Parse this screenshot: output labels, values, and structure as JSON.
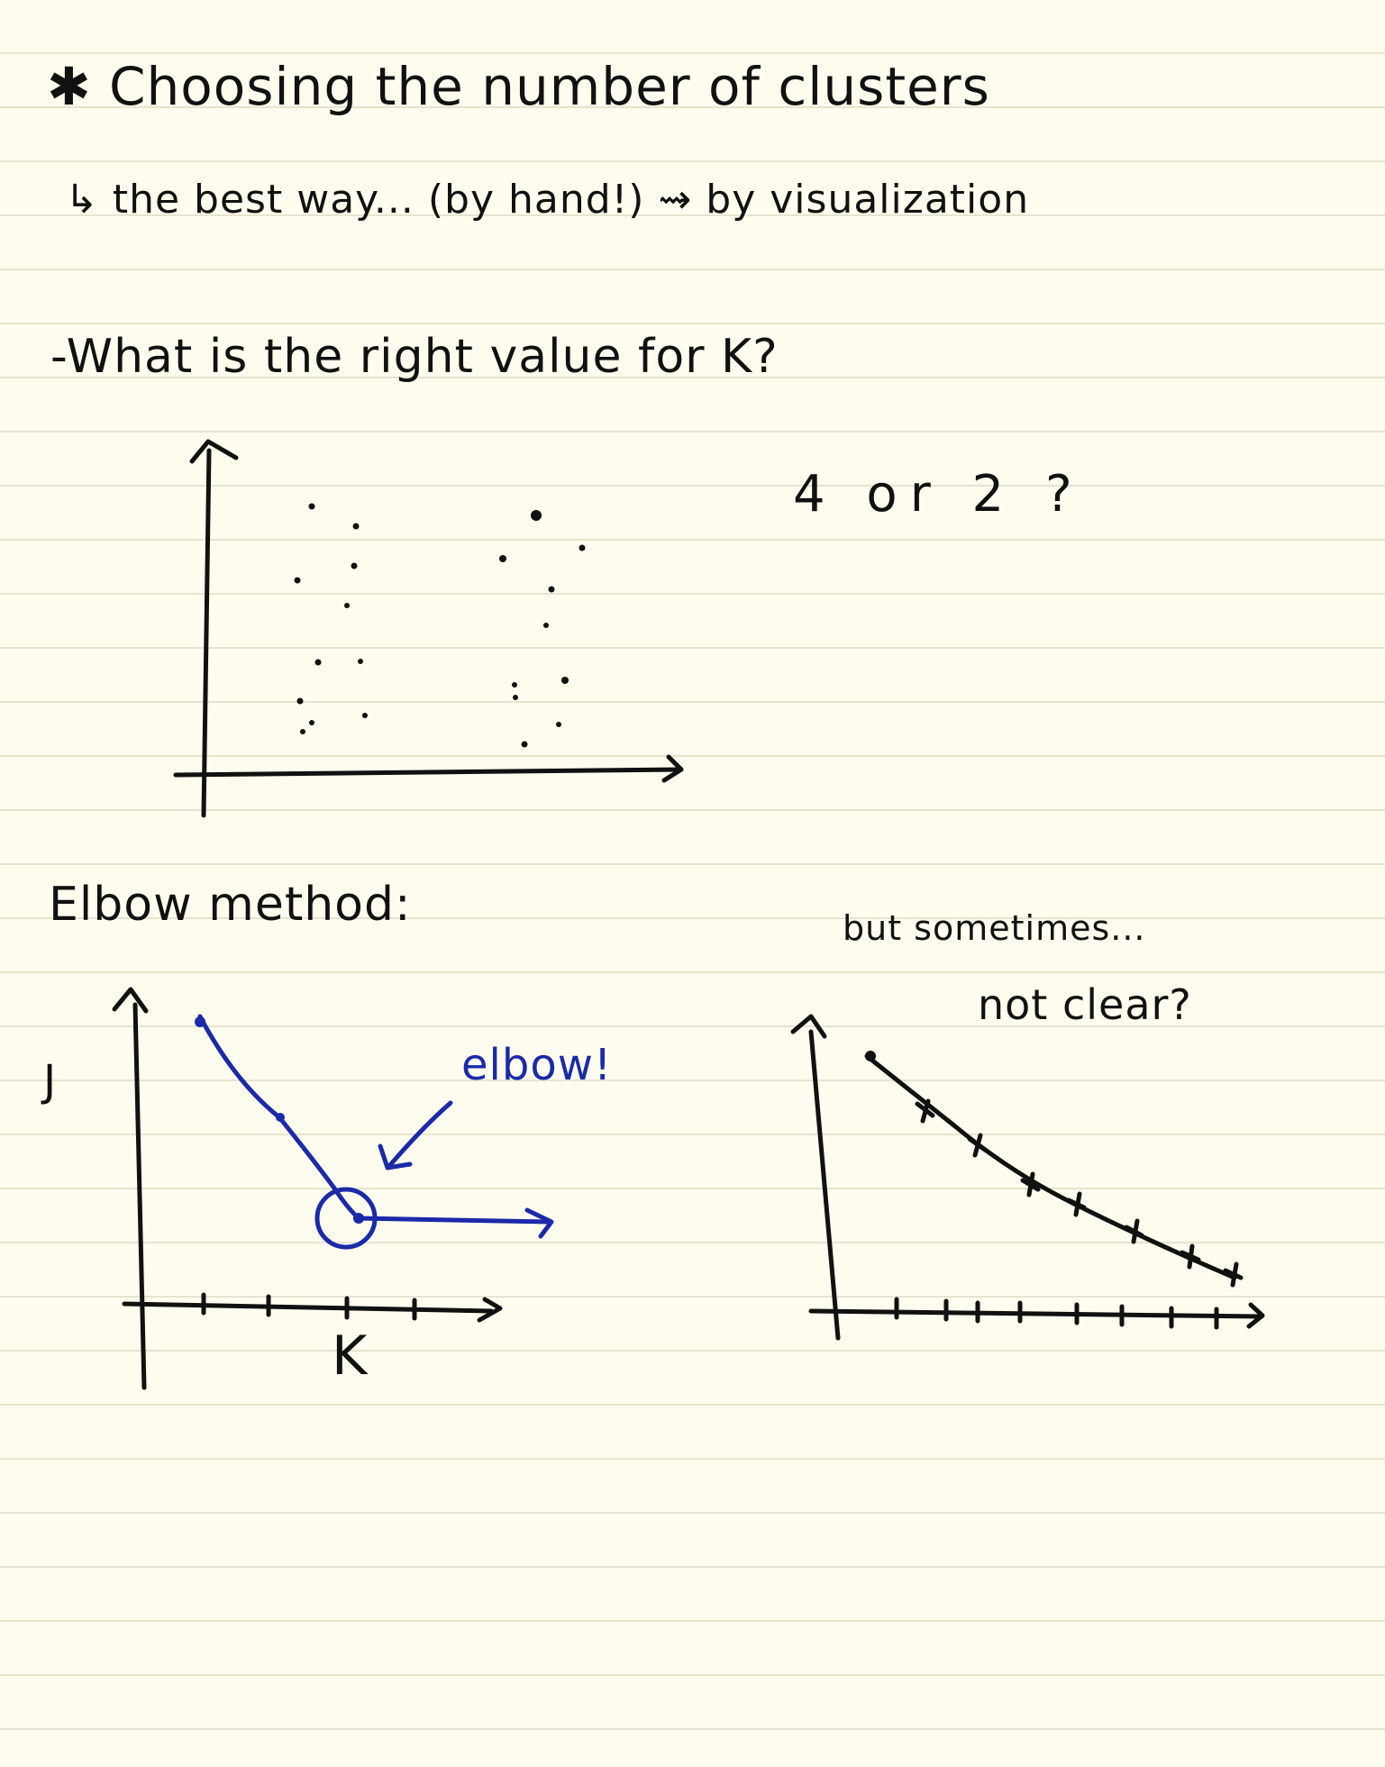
{
  "notes": {
    "heading": "✱ Choosing the number of clusters",
    "subheading": "↳ the best way... (by hand!) ⇝ by visualization",
    "question": "-What is the right value for K?",
    "options": "4  or  2 ?",
    "elbow_method": "Elbow method:",
    "but_sometimes": "but sometimes...",
    "not_clear": "not clear?",
    "y_label": "J",
    "x_label": "K",
    "elbow_label": "elbow!"
  },
  "colors": {
    "paper": "#fdfcee",
    "rule": "#e6e3d0",
    "ink": "#111111",
    "blue_ink": "#1a2aa8"
  },
  "icons": {
    "heading_marker": "asterisk-icon",
    "subheading_marker": "hook-arrow-icon"
  }
}
